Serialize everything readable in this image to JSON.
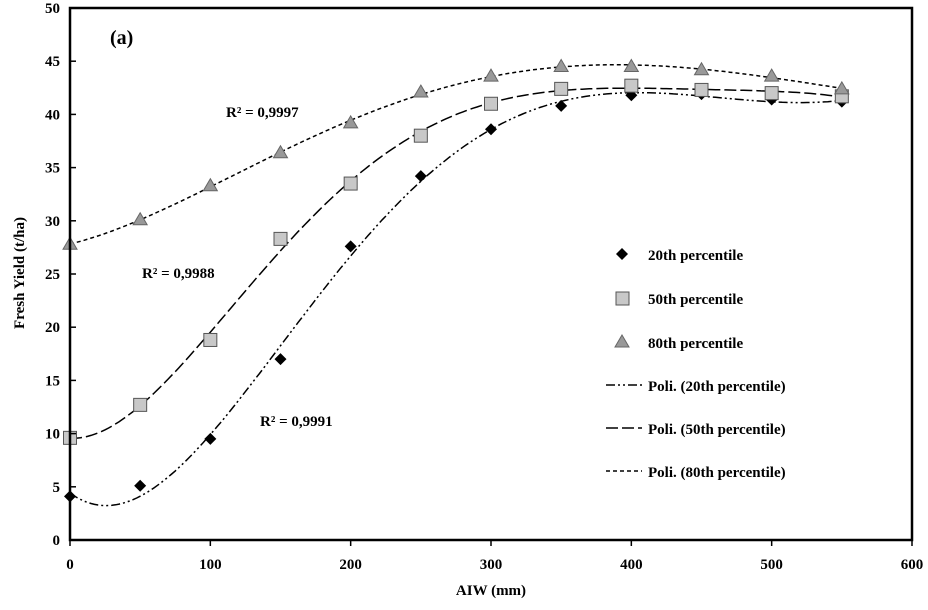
{
  "chart_data": {
    "type": "scatter",
    "panel_label": "(a)",
    "xlabel": "AIW (mm)",
    "ylabel": "Fresh Yield (t/ha)",
    "xlim": [
      0,
      600
    ],
    "ylim": [
      0,
      50
    ],
    "x_ticks": [
      0,
      100,
      200,
      300,
      400,
      500,
      600
    ],
    "y_ticks": [
      0,
      5,
      10,
      15,
      20,
      25,
      30,
      35,
      40,
      45,
      50
    ],
    "grid": false,
    "legend_position": "right",
    "x": [
      0,
      50,
      100,
      150,
      200,
      250,
      300,
      350,
      400,
      450,
      500,
      550
    ],
    "series": [
      {
        "name": "20th percentile",
        "marker": "diamond",
        "color": "#000000",
        "values": [
          4.1,
          5.1,
          9.5,
          17.0,
          27.6,
          34.2,
          38.6,
          40.8,
          41.8,
          41.9,
          41.4,
          41.2
        ]
      },
      {
        "name": "50th percentile",
        "marker": "square",
        "color": "#c8c8c8",
        "values": [
          9.6,
          12.7,
          18.8,
          28.3,
          33.5,
          38.0,
          41.0,
          42.4,
          42.7,
          42.3,
          42.0,
          41.7
        ]
      },
      {
        "name": "80th percentile",
        "marker": "triangle",
        "color": "#999999",
        "values": [
          27.8,
          30.1,
          33.3,
          36.4,
          39.2,
          42.1,
          43.6,
          44.5,
          44.5,
          44.2,
          43.6,
          42.4
        ]
      }
    ],
    "trendlines": [
      {
        "name": "Poli. (20th percentile)",
        "dash": "dash-dot-dot",
        "r2_label": "R² = 0,9991"
      },
      {
        "name": "Poli. (50th percentile)",
        "dash": "long-dash",
        "r2_label": "R² = 0,9988"
      },
      {
        "name": "Poli. (80th percentile)",
        "dash": "short-dash",
        "r2_label": "R² = 0,9997"
      }
    ]
  }
}
